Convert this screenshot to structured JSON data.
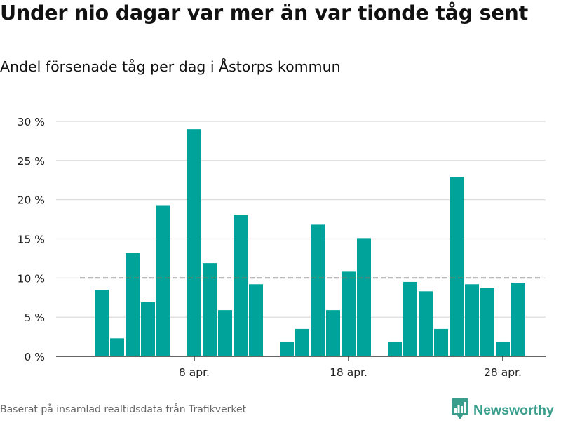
{
  "header": {
    "title": "Under nio dagar var mer än var tionde tåg sent",
    "subtitle": "Andel försenade tåg per dag i Åstorps kommun"
  },
  "footer": {
    "source": "Baserat på insamlad realtidsdata från Trafikverket",
    "brand": "Newsworthy",
    "brand_icon": "bar-chart-logo-icon"
  },
  "colors": {
    "bar": "#00a39a",
    "grid": "#d9d9d9",
    "reference_line": "#777777",
    "brand": "#3a9e8d"
  },
  "chart_data": {
    "type": "bar",
    "title": "Under nio dagar var mer än var tionde tåg sent",
    "subtitle": "Andel försenade tåg per dag i Åstorps kommun",
    "xlabel": "",
    "ylabel": "",
    "x_start": "2024-04-01",
    "x": [
      "2024-04-01",
      "2024-04-02",
      "2024-04-03",
      "2024-04-04",
      "2024-04-05",
      "2024-04-06",
      "2024-04-07",
      "2024-04-08",
      "2024-04-09",
      "2024-04-10",
      "2024-04-11",
      "2024-04-12",
      "2024-04-13",
      "2024-04-14",
      "2024-04-15",
      "2024-04-16",
      "2024-04-17",
      "2024-04-18",
      "2024-04-19",
      "2024-04-20",
      "2024-04-21",
      "2024-04-22",
      "2024-04-23",
      "2024-04-24",
      "2024-04-25",
      "2024-04-26",
      "2024-04-27",
      "2024-04-28",
      "2024-04-29",
      "2024-04-30"
    ],
    "values": [
      null,
      8.5,
      2.3,
      13.2,
      6.9,
      19.3,
      null,
      29.0,
      11.9,
      5.9,
      18.0,
      9.2,
      null,
      1.8,
      3.5,
      16.8,
      5.9,
      10.8,
      15.1,
      null,
      1.8,
      9.5,
      8.3,
      3.5,
      22.9,
      9.2,
      8.7,
      1.8,
      9.4,
      null
    ],
    "reference_line": 10,
    "ylim": [
      0,
      30
    ],
    "yticks": [
      0,
      5,
      10,
      15,
      20,
      25,
      30
    ],
    "ytick_labels": [
      "0 %",
      "5 %",
      "10 %",
      "15 %",
      "20 %",
      "25 %",
      "30 %"
    ],
    "xtick_dates": [
      "2024-04-08",
      "2024-04-18",
      "2024-04-28"
    ],
    "xtick_labels": [
      "8 apr.",
      "18 apr.",
      "28 apr."
    ],
    "grid": true,
    "legend": "none"
  }
}
